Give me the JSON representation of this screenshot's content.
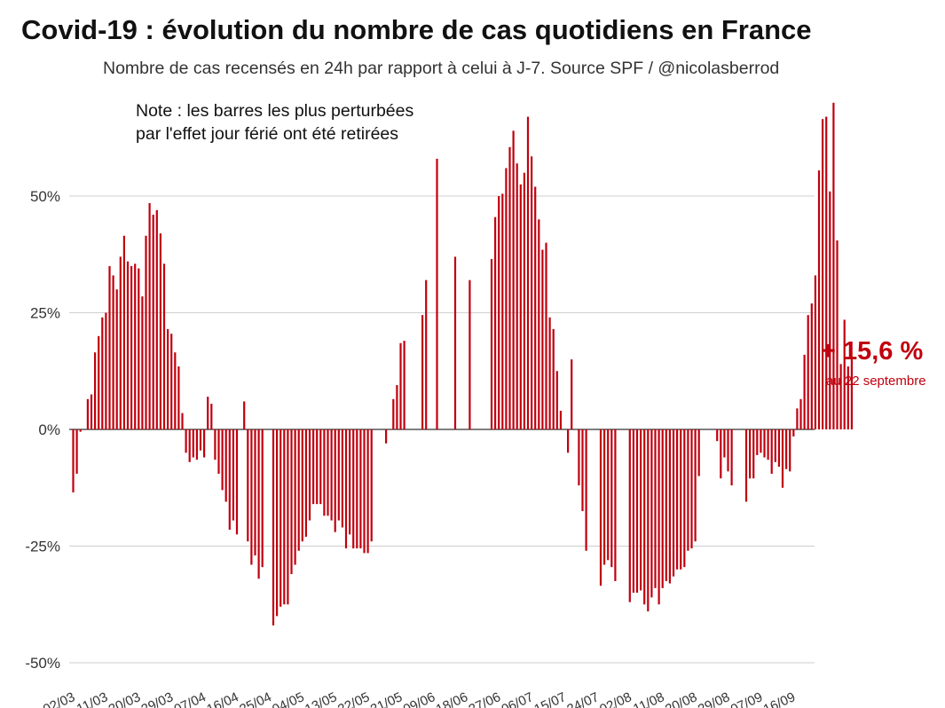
{
  "header": {
    "title": "Covid-19 : évolution du nombre de cas quotidiens en France",
    "subtitle": "Nombre de cas recensés en 24h par rapport à celui à J-7. Source SPF / @nicolasberrod"
  },
  "note": {
    "line1": "Note : les barres les plus perturbées",
    "line2": "par l'effet jour férié ont été retirées"
  },
  "callout": {
    "value": "+ 15,6 %",
    "date": "au 22 septembre"
  },
  "colors": {
    "bar": "#c0000e",
    "grid": "#cfcfcf",
    "axis": "#333333"
  },
  "chart_data": {
    "type": "bar",
    "title": "Covid-19 : évolution du nombre de cas quotidiens en France",
    "subtitle": "Nombre de cas recensés en 24h par rapport à celui à J-7. Source SPF / @nicolasberrod",
    "ylim": [
      -50,
      70
    ],
    "yticks": [
      50,
      25,
      0,
      -25,
      -50
    ],
    "ytick_labels": [
      "50%",
      "25%",
      "0%",
      "-25%",
      "-50%"
    ],
    "grid": true,
    "x_tick_labels": [
      "02/03",
      "11/03",
      "20/03",
      "29/03",
      "07/04",
      "16/04",
      "25/04",
      "04/05",
      "13/05",
      "22/05",
      "31/05",
      "09/06",
      "18/06",
      "27/06",
      "06/07",
      "15/07",
      "24/07",
      "02/08",
      "11/08",
      "20/08",
      "29/08",
      "07/09",
      "16/09"
    ],
    "x_tick_day_index": [
      0,
      9,
      18,
      27,
      36,
      45,
      54,
      63,
      72,
      81,
      90,
      99,
      108,
      117,
      126,
      135,
      144,
      153,
      162,
      171,
      180,
      189,
      198
    ],
    "series": [
      {
        "start_date": "02/03",
        "values": [
          -13.5,
          -9.5,
          -0.5,
          null,
          6.5,
          7.5,
          16.5,
          20,
          24,
          25,
          35,
          33,
          30,
          37,
          41.5,
          36,
          35,
          35.5,
          34.5,
          28.5,
          41.5,
          48.5,
          46,
          47,
          42,
          35.5,
          21.5,
          20.5,
          16.5,
          13.5,
          3.5,
          -5,
          -7,
          -6,
          -6.5,
          -4.5,
          -6,
          7,
          5.5,
          -6.5,
          -9.5,
          -13,
          -15.5,
          -21.5,
          -19.5,
          -22.5,
          null,
          6,
          -24,
          -29,
          -27,
          -32,
          -29.5,
          null,
          null,
          -42,
          -40,
          -38,
          -37.5,
          -37.5,
          -31,
          -29,
          -26,
          -24,
          -23,
          -19.5,
          -16,
          -16,
          -16,
          -18.5,
          -18.5,
          -19.5,
          -22,
          -19.5,
          -21,
          -25.5,
          -22.5,
          -25.5,
          -25.5,
          -25.5,
          -26.5,
          -26.5,
          -24,
          null,
          null,
          null,
          -3,
          null,
          6.5,
          9.5,
          18.5,
          19,
          null,
          null,
          null,
          null,
          24.5,
          32,
          null,
          null,
          58,
          null,
          null,
          null,
          null,
          37,
          null,
          null,
          null,
          32,
          null,
          null,
          null,
          null,
          null,
          36.5,
          45.5,
          50,
          50.5,
          56,
          60.5,
          64,
          57,
          52.5,
          55,
          67,
          58.5,
          52,
          45,
          38.5,
          40,
          24,
          21.5,
          12.5,
          4,
          null,
          -5,
          15,
          null,
          -12,
          -17.5,
          -26,
          null,
          null,
          null,
          -33.5,
          -29,
          -28,
          -29.5,
          -32.5,
          null,
          null,
          null,
          -37,
          -35,
          -35,
          -34.5,
          -37.5,
          -39,
          -36,
          -34,
          -37.5,
          -34,
          -32.5,
          -33,
          -31.5,
          -30,
          -30,
          -29.5,
          -26,
          -25.5,
          -24,
          -10,
          null,
          null,
          null,
          null,
          -2.5,
          -10.5,
          -6,
          -9,
          -12,
          null,
          null,
          null,
          -15.5,
          -10.5,
          -10.5,
          -5.5,
          -5,
          -6,
          -6.5,
          -9.5,
          -7,
          -8,
          -12.5,
          -8.5,
          -9,
          -1.5,
          4.5,
          6.5,
          16,
          24.5,
          27,
          33,
          55.5,
          66.5,
          67,
          51,
          70,
          40.5,
          14,
          23.5,
          13.5,
          15.5
        ]
      }
    ]
  }
}
